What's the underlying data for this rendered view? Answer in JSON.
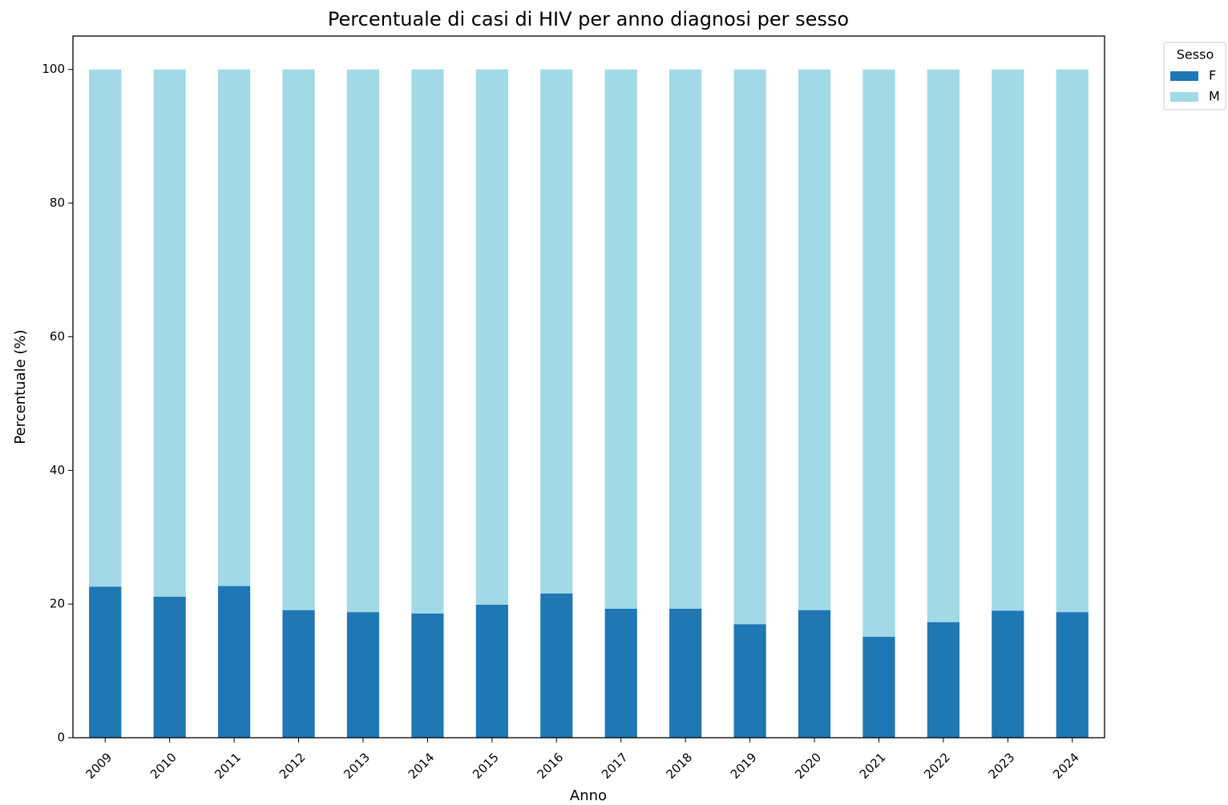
{
  "chart_data": {
    "type": "stacked_bar",
    "title": "Percentuale di casi di HIV per anno diagnosi per sesso",
    "xlabel": "Anno",
    "ylabel": "Percentuale (%)",
    "categories": [
      "2009",
      "2010",
      "2011",
      "2012",
      "2013",
      "2014",
      "2015",
      "2016",
      "2017",
      "2018",
      "2019",
      "2020",
      "2021",
      "2022",
      "2023",
      "2024"
    ],
    "series": [
      {
        "name": "F",
        "color": "#1f77b4",
        "values": [
          22.6,
          21.1,
          22.7,
          19.1,
          18.8,
          18.6,
          19.9,
          21.6,
          19.3,
          19.3,
          17.0,
          19.1,
          15.1,
          17.3,
          19.0,
          18.8
        ]
      },
      {
        "name": "M",
        "color": "#a1d9e6",
        "values": [
          77.4,
          78.9,
          77.3,
          80.9,
          81.2,
          81.4,
          80.1,
          78.4,
          80.7,
          80.7,
          83.0,
          80.9,
          84.9,
          82.7,
          81.0,
          81.2
        ]
      }
    ],
    "legend_title": "Sesso",
    "legend_position": "outside upper right",
    "ylim": [
      0,
      105
    ],
    "yticks": [
      0,
      20,
      40,
      60,
      80,
      100
    ],
    "grid": false
  }
}
